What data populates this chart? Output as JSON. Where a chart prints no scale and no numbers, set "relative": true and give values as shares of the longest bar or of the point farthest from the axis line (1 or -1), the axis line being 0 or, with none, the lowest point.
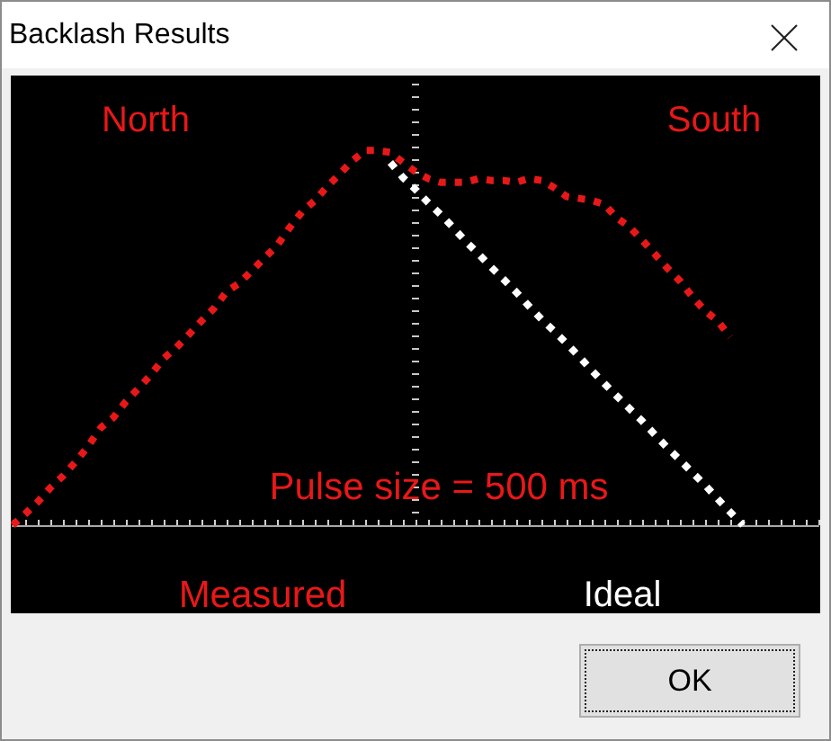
{
  "chart_data": {
    "type": "line",
    "title": "Backlash Results",
    "annotations": [
      "North",
      "South",
      "Pulse size = 500 ms",
      "OK"
    ],
    "categories": [
      null,
      null,
      null,
      null,
      null,
      null,
      null,
      null,
      null,
      null,
      null,
      null,
      null,
      null,
      null,
      null,
      null,
      null,
      null,
      null,
      null,
      null,
      null,
      null,
      null,
      null,
      null,
      null,
      null,
      null,
      null,
      null,
      null,
      null,
      null,
      null,
      null,
      null,
      null,
      null,
      null,
      null,
      null,
      null,
      null,
      null,
      null,
      null,
      null,
      null,
      null,
      null,
      null,
      null,
      null,
      null,
      null,
      null,
      null,
      null,
      null,
      null,
      null,
      null,
      null
    ],
    "series": [
      {
        "name": "Measured",
        "color": "#e81818",
        "values": [
          0,
          0.03,
          0.062,
          0.1,
          0.131,
          0.169,
          0.211,
          0.26,
          0.287,
          0.33,
          0.365,
          0.402,
          0.445,
          0.474,
          0.509,
          0.545,
          0.579,
          0.623,
          0.646,
          0.679,
          0.713,
          0.746,
          0.794,
          0.837,
          0.866,
          0.904,
          0.938,
          0.973,
          1,
          1,
          0.995,
          0.968,
          0.943,
          0.925,
          0.915,
          0.915,
          0.915,
          0.925,
          0.92,
          0.92,
          0.915,
          0.925,
          0.92,
          0.901,
          0.877,
          0.872,
          0.867,
          0.856,
          0.82,
          0.796,
          0.761,
          0.724,
          0.686,
          0.652,
          0.609,
          0.572,
          0.545,
          0.502,
          null,
          null,
          null,
          null,
          null,
          null,
          null
        ]
      },
      {
        "name": "Ideal",
        "color": "#ffffff",
        "values": [
          null,
          null,
          null,
          null,
          null,
          null,
          null,
          null,
          null,
          null,
          null,
          null,
          null,
          null,
          null,
          null,
          null,
          null,
          null,
          null,
          null,
          null,
          null,
          null,
          null,
          null,
          null,
          null,
          null,
          null,
          0.968,
          0.928,
          0.896,
          0.861,
          0.829,
          0.794,
          0.757,
          0.724,
          0.689,
          0.656,
          0.622,
          0.585,
          0.55,
          0.518,
          0.485,
          0.45,
          0.413,
          0.378,
          0.344,
          0.311,
          0.278,
          0.242,
          0.207,
          0.174,
          0.14,
          0.107,
          0.07,
          0.035,
          0,
          null,
          null,
          null,
          null,
          null,
          null
        ]
      }
    ],
    "relative": true,
    "tick_labels": false,
    "line_style": "dotted"
  }
}
